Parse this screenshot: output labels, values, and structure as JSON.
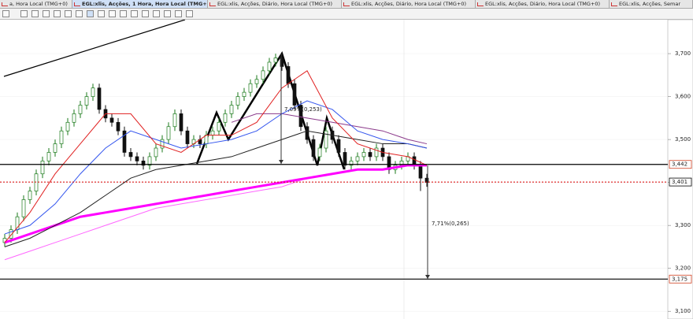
{
  "tabs": [
    "a, Hora Local (TMG+0)",
    "EGL:xlis, Acções, 1 Hora, Hora Local (TMG+0)",
    "EGL:xlis, Acções, Diário, Hora Local (TMG+0)",
    "EGL:xlis, Acções, Diário, Hora Local (TMG+0)",
    "EGL:xlis, Acções, Diário, Hora Local (TMG+0)",
    "EGL:xlis, Acções, Semar"
  ],
  "chart_data": {
    "type": "candlestick",
    "ylim": [
      3.082,
      3.779
    ],
    "yticks": [
      {
        "value": 3.7,
        "label": "3,700"
      },
      {
        "value": 3.6,
        "label": "3,600"
      },
      {
        "value": 3.5,
        "label": "3,500"
      },
      {
        "value": 3.4,
        "label": "3,400"
      },
      {
        "value": 3.3,
        "label": "3,300"
      },
      {
        "value": 3.2,
        "label": "3,200"
      },
      {
        "value": 3.1,
        "label": "3,100"
      }
    ],
    "candles": [
      [
        3.26,
        3.28,
        3.25,
        3.27
      ],
      [
        3.27,
        3.3,
        3.26,
        3.29
      ],
      [
        3.29,
        3.33,
        3.28,
        3.32
      ],
      [
        3.32,
        3.37,
        3.31,
        3.36
      ],
      [
        3.36,
        3.39,
        3.35,
        3.38
      ],
      [
        3.38,
        3.43,
        3.37,
        3.42
      ],
      [
        3.42,
        3.46,
        3.41,
        3.45
      ],
      [
        3.45,
        3.48,
        3.44,
        3.47
      ],
      [
        3.47,
        3.5,
        3.46,
        3.49
      ],
      [
        3.49,
        3.53,
        3.48,
        3.52
      ],
      [
        3.52,
        3.55,
        3.51,
        3.54
      ],
      [
        3.54,
        3.57,
        3.53,
        3.56
      ],
      [
        3.56,
        3.59,
        3.55,
        3.58
      ],
      [
        3.58,
        3.61,
        3.57,
        3.6
      ],
      [
        3.6,
        3.63,
        3.59,
        3.62
      ],
      [
        3.62,
        3.63,
        3.56,
        3.57
      ],
      [
        3.57,
        3.58,
        3.54,
        3.55
      ],
      [
        3.55,
        3.56,
        3.53,
        3.54
      ],
      [
        3.54,
        3.55,
        3.51,
        3.52
      ],
      [
        3.52,
        3.53,
        3.46,
        3.47
      ],
      [
        3.47,
        3.48,
        3.45,
        3.46
      ],
      [
        3.46,
        3.47,
        3.44,
        3.45
      ],
      [
        3.45,
        3.46,
        3.43,
        3.44
      ],
      [
        3.44,
        3.47,
        3.43,
        3.46
      ],
      [
        3.46,
        3.49,
        3.45,
        3.48
      ],
      [
        3.48,
        3.51,
        3.47,
        3.5
      ],
      [
        3.5,
        3.54,
        3.49,
        3.53
      ],
      [
        3.53,
        3.57,
        3.52,
        3.56
      ],
      [
        3.56,
        3.57,
        3.51,
        3.52
      ],
      [
        3.52,
        3.53,
        3.48,
        3.49
      ],
      [
        3.49,
        3.51,
        3.48,
        3.5
      ],
      [
        3.5,
        3.51,
        3.48,
        3.49
      ],
      [
        3.49,
        3.52,
        3.48,
        3.51
      ],
      [
        3.51,
        3.53,
        3.5,
        3.52
      ],
      [
        3.52,
        3.55,
        3.51,
        3.54
      ],
      [
        3.54,
        3.57,
        3.53,
        3.56
      ],
      [
        3.56,
        3.59,
        3.55,
        3.58
      ],
      [
        3.58,
        3.61,
        3.57,
        3.6
      ],
      [
        3.6,
        3.62,
        3.59,
        3.61
      ],
      [
        3.61,
        3.64,
        3.6,
        3.63
      ],
      [
        3.63,
        3.65,
        3.62,
        3.64
      ],
      [
        3.64,
        3.67,
        3.63,
        3.66
      ],
      [
        3.66,
        3.69,
        3.65,
        3.68
      ],
      [
        3.68,
        3.7,
        3.67,
        3.69
      ],
      [
        3.69,
        3.7,
        3.66,
        3.67
      ],
      [
        3.67,
        3.68,
        3.62,
        3.63
      ],
      [
        3.63,
        3.64,
        3.57,
        3.58
      ],
      [
        3.58,
        3.59,
        3.52,
        3.53
      ],
      [
        3.53,
        3.54,
        3.49,
        3.5
      ],
      [
        3.5,
        3.51,
        3.45,
        3.46
      ],
      [
        3.46,
        3.49,
        3.45,
        3.48
      ],
      [
        3.48,
        3.53,
        3.47,
        3.52
      ],
      [
        3.52,
        3.53,
        3.49,
        3.5
      ],
      [
        3.5,
        3.51,
        3.46,
        3.47
      ],
      [
        3.47,
        3.48,
        3.43,
        3.44
      ],
      [
        3.44,
        3.46,
        3.43,
        3.45
      ],
      [
        3.45,
        3.47,
        3.44,
        3.46
      ],
      [
        3.46,
        3.48,
        3.45,
        3.47
      ],
      [
        3.47,
        3.48,
        3.45,
        3.46
      ],
      [
        3.46,
        3.49,
        3.45,
        3.48
      ],
      [
        3.48,
        3.49,
        3.45,
        3.46
      ],
      [
        3.46,
        3.47,
        3.42,
        3.43
      ],
      [
        3.43,
        3.45,
        3.42,
        3.44
      ],
      [
        3.44,
        3.46,
        3.43,
        3.45
      ],
      [
        3.45,
        3.47,
        3.44,
        3.46
      ],
      [
        3.46,
        3.47,
        3.43,
        3.44
      ],
      [
        3.44,
        3.45,
        3.38,
        3.41
      ],
      [
        3.41,
        3.42,
        3.39,
        3.4
      ]
    ],
    "ma_x": [
      0,
      4,
      8,
      12,
      16,
      20,
      24,
      28,
      32,
      36,
      40,
      44,
      48,
      52,
      56,
      60,
      64,
      67
    ],
    "series": [
      {
        "color": "#ff66ff",
        "width": 1,
        "values": [
          3.22,
          3.24,
          3.26,
          3.28,
          3.3,
          3.32,
          3.34,
          3.35,
          3.36,
          3.37,
          3.38,
          3.39,
          3.41,
          3.42,
          3.43,
          3.43,
          3.44,
          3.44
        ]
      },
      {
        "color": "#ff00ff",
        "width": 3,
        "values": [
          3.26,
          3.28,
          3.3,
          3.32,
          3.33,
          3.34,
          3.35,
          3.36,
          3.37,
          3.38,
          3.39,
          3.4,
          3.41,
          3.42,
          3.43,
          3.43,
          3.44,
          3.44
        ]
      },
      {
        "color": "#222222",
        "width": 1,
        "values": [
          3.25,
          3.27,
          3.3,
          3.33,
          3.37,
          3.41,
          3.43,
          3.44,
          3.45,
          3.46,
          3.48,
          3.5,
          3.52,
          3.51,
          3.5,
          3.49,
          3.49,
          3.48
        ]
      },
      {
        "color": "#8b3a8b",
        "width": 1,
        "values": [
          null,
          null,
          null,
          null,
          null,
          null,
          null,
          null,
          null,
          3.54,
          3.56,
          3.56,
          3.55,
          3.54,
          3.53,
          3.52,
          3.5,
          3.49
        ]
      },
      {
        "color": "#3355ee",
        "width": 1,
        "values": [
          3.28,
          3.3,
          3.35,
          3.42,
          3.48,
          3.52,
          3.5,
          3.48,
          3.49,
          3.5,
          3.52,
          3.56,
          3.59,
          3.57,
          3.52,
          3.5,
          3.49,
          3.48
        ]
      },
      {
        "color": "#e02020",
        "width": 1,
        "values": [
          3.26,
          3.33,
          3.42,
          3.49,
          3.56,
          3.56,
          3.49,
          3.47,
          3.51,
          3.51,
          3.54,
          3.62,
          3.66,
          3.55,
          3.49,
          3.47,
          3.46,
          3.44
        ]
      }
    ],
    "levels": [
      {
        "value": 3.442,
        "label": "3,442",
        "color": "#000000",
        "tag": "#d04020",
        "dashed": false
      },
      {
        "value": 3.401,
        "label": "3,401",
        "color": "#dd0000",
        "tag": "#000000",
        "dashed": true
      },
      {
        "value": 3.175,
        "label": "3,175",
        "color": "#000000",
        "tag": "#d04020",
        "dashed": false
      }
    ],
    "annotations": [
      "7,09%(0,253)",
      "7,71%(0,265)"
    ]
  }
}
